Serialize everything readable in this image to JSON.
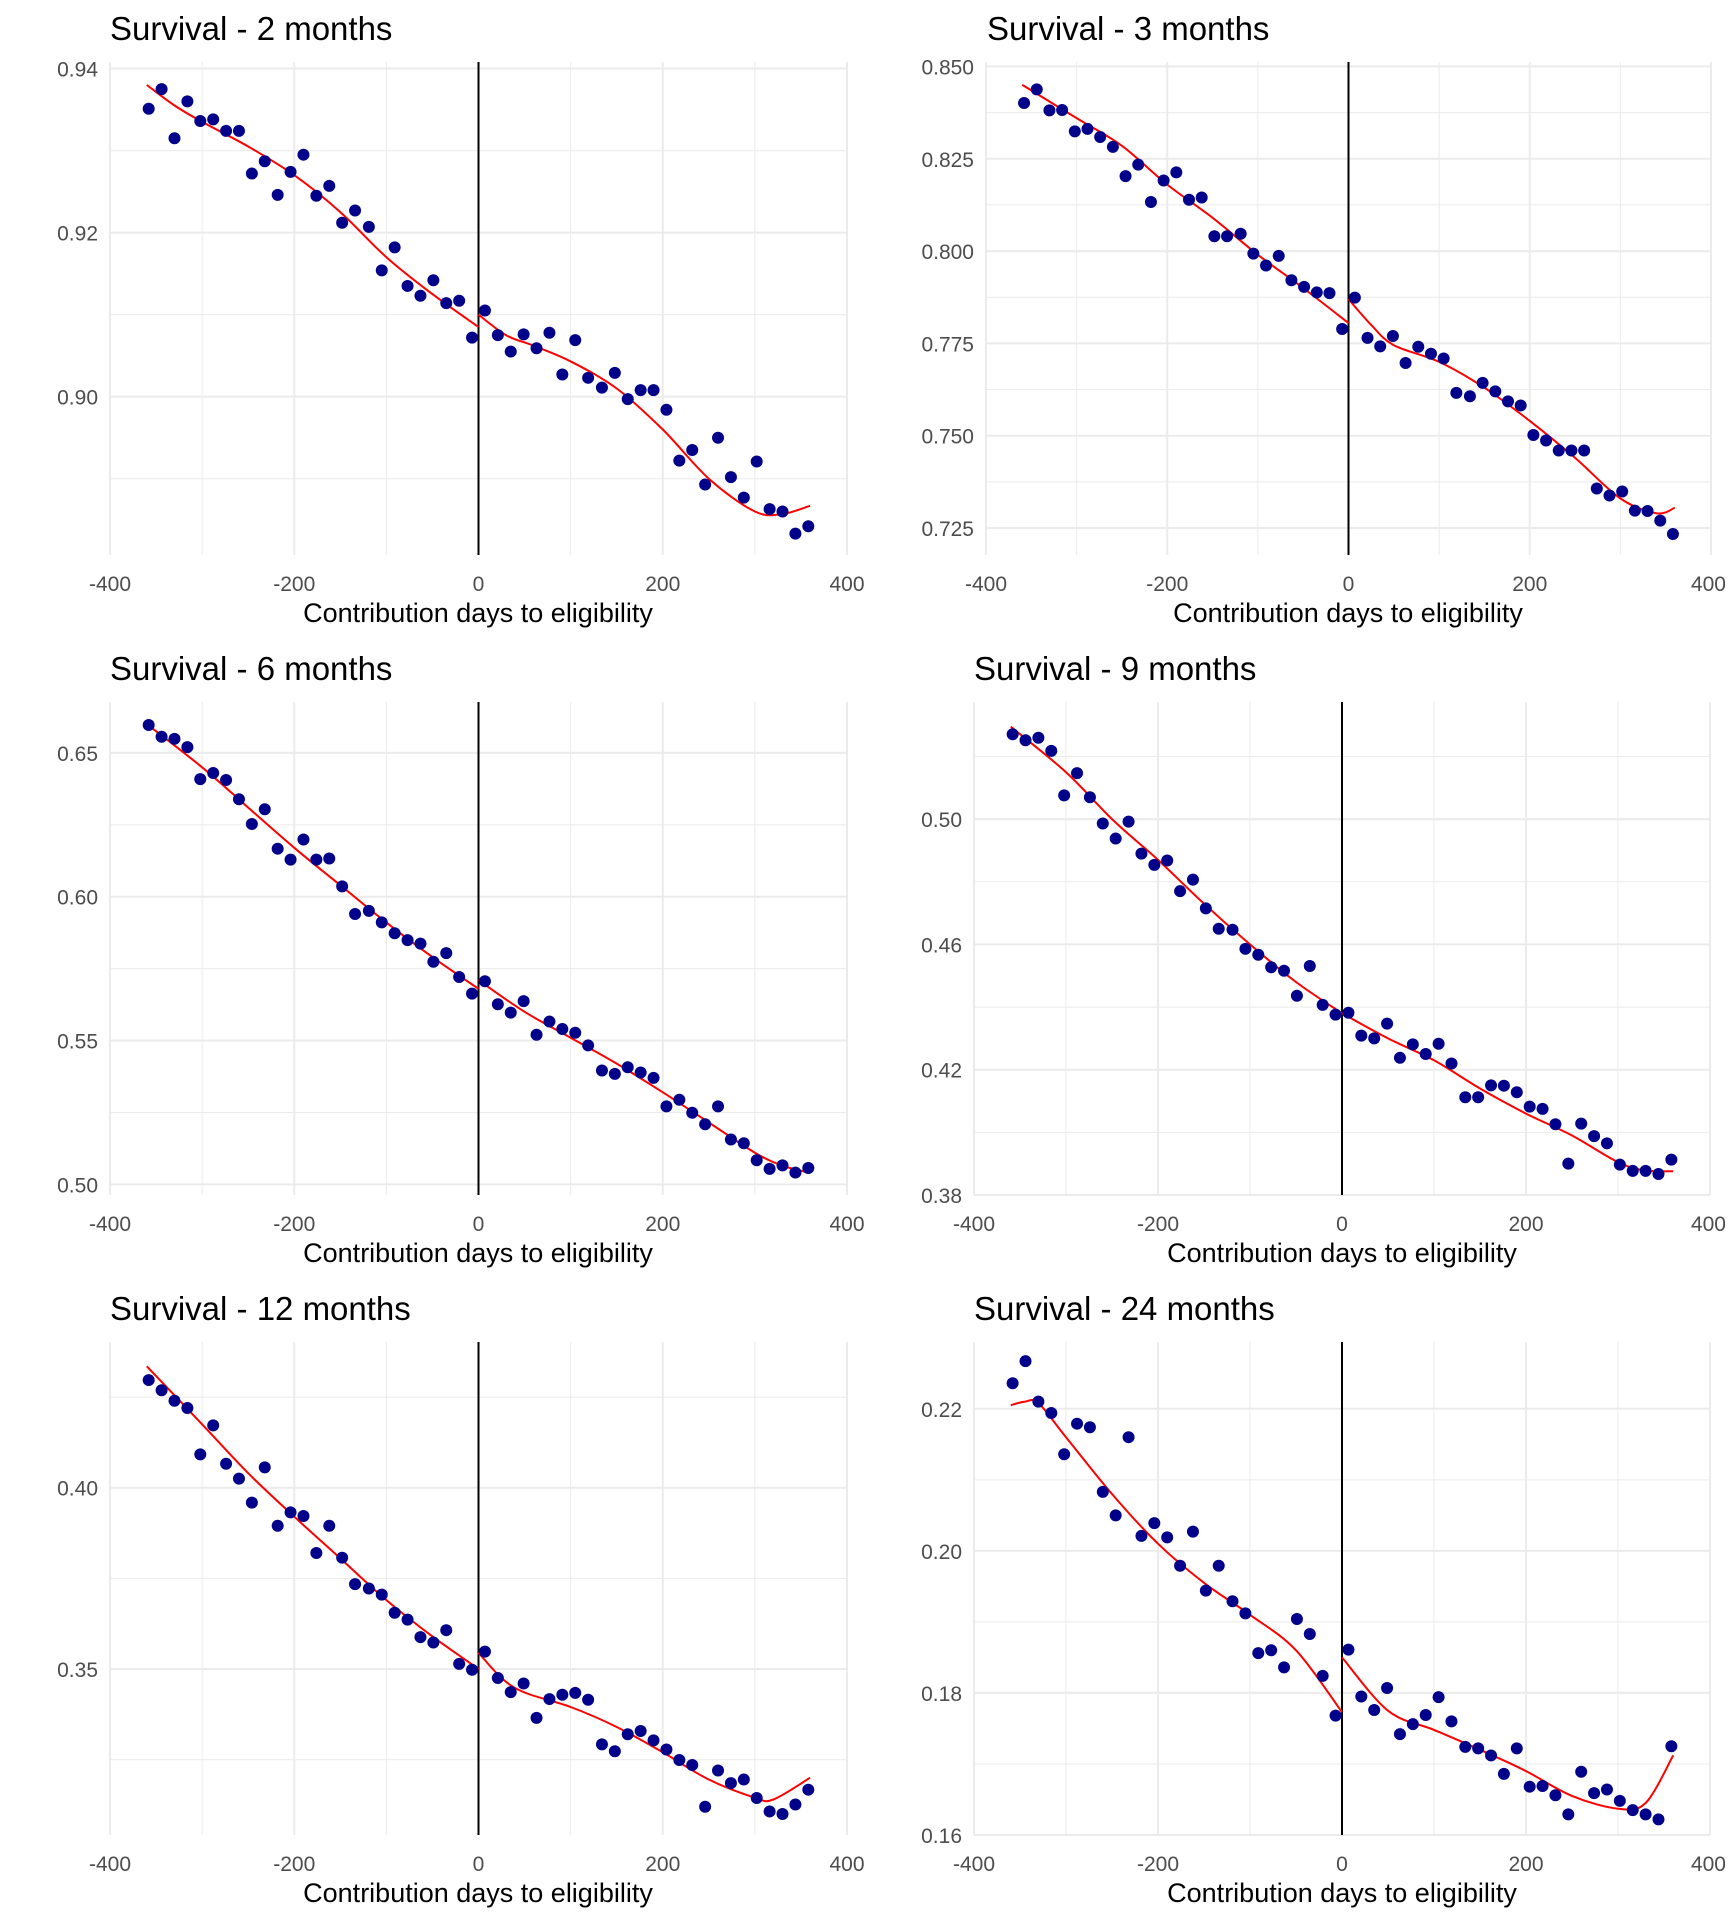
{
  "colors": {
    "points": "#00008B",
    "fit": "#FF0000",
    "cutoff": "#000000",
    "grid": "#EBEBEB"
  },
  "chart_data": [
    {
      "type": "scatter",
      "title": "Survival - 2 months",
      "xlabel": "Contribution days to eligibility",
      "ylabel": "",
      "xlim": [
        -400,
        400
      ],
      "ylim": [
        0.8807,
        0.9408
      ],
      "x_ticks": [
        -400,
        -200,
        0,
        200,
        400
      ],
      "x_tick_labels": [
        "-400",
        "-200",
        "0",
        "200",
        "400"
      ],
      "y_ticks": [
        0.9,
        0.92,
        0.94
      ],
      "y_tick_labels": [
        "0.90",
        "0.92",
        "0.94"
      ],
      "y_minor": [
        0.89,
        0.91,
        0.93
      ],
      "cutoff": 0,
      "grid": true,
      "points": {
        "left": [
          0.9351,
          0.9375,
          0.9315,
          0.936,
          0.9336,
          0.9338,
          0.9324,
          0.9324,
          0.9272,
          0.9287,
          0.9246,
          0.9274,
          0.9295,
          0.9245,
          0.9257,
          0.9212,
          0.9227,
          0.9207,
          0.9154,
          0.9182,
          0.9135,
          0.9123,
          0.9142,
          0.9114,
          0.9117,
          0.9072
        ],
        "right": [
          0.9105,
          0.9075,
          0.9055,
          0.9076,
          0.9059,
          0.9078,
          0.9027,
          0.9069,
          0.9023,
          0.9011,
          0.9029,
          0.8997,
          0.9008,
          0.9008,
          0.8984,
          0.8922,
          0.8935,
          0.8893,
          0.895,
          0.8902,
          0.8877,
          0.8921,
          0.8863,
          0.886,
          0.8833,
          0.8842
        ]
      },
      "fit": {
        "left": [
          [
            -360,
            0.938
          ],
          [
            -330,
            0.9355
          ],
          [
            -300,
            0.9335
          ],
          [
            -250,
            0.9305
          ],
          [
            -200,
            0.927
          ],
          [
            -150,
            0.9225
          ],
          [
            -100,
            0.917
          ],
          [
            -50,
            0.9125
          ],
          [
            0,
            0.9085
          ]
        ],
        "right": [
          [
            0,
            0.91
          ],
          [
            30,
            0.9075
          ],
          [
            60,
            0.9062
          ],
          [
            100,
            0.9043
          ],
          [
            150,
            0.901
          ],
          [
            200,
            0.896
          ],
          [
            250,
            0.89
          ],
          [
            300,
            0.886
          ],
          [
            330,
            0.8857
          ],
          [
            360,
            0.8867
          ]
        ]
      }
    },
    {
      "type": "scatter",
      "title": "Survival - 3 months",
      "xlabel": "Contribution days to eligibility",
      "ylabel": "",
      "xlim": [
        -400,
        400
      ],
      "ylim": [
        0.7177,
        0.8512
      ],
      "x_ticks": [
        -400,
        -200,
        0,
        200,
        400
      ],
      "x_tick_labels": [
        "-400",
        "-200",
        "0",
        "200",
        "400"
      ],
      "y_ticks": [
        0.725,
        0.75,
        0.775,
        0.8,
        0.825,
        0.85
      ],
      "y_tick_labels": [
        "0.725",
        "0.750",
        "0.775",
        "0.800",
        "0.825",
        "0.850"
      ],
      "y_minor": [
        0.7375,
        0.7625,
        0.7875,
        0.8125,
        0.8375
      ],
      "cutoff": 0,
      "grid": true,
      "points": {
        "left": [
          0.8401,
          0.8438,
          0.8381,
          0.8382,
          0.8324,
          0.8331,
          0.8309,
          0.8282,
          0.8203,
          0.8234,
          0.8133,
          0.8191,
          0.8213,
          0.8139,
          0.8145,
          0.804,
          0.804,
          0.8047,
          0.7993,
          0.7961,
          0.7987,
          0.7921,
          0.7903,
          0.7888,
          0.7886,
          0.7789
        ],
        "right": [
          0.7874,
          0.7765,
          0.7742,
          0.777,
          0.7697,
          0.7741,
          0.7722,
          0.7709,
          0.7616,
          0.7607,
          0.7643,
          0.762,
          0.7593,
          0.7582,
          0.7502,
          0.7487,
          0.746,
          0.746,
          0.746,
          0.7357,
          0.7338,
          0.7349,
          0.7297,
          0.7296,
          0.727,
          0.7234
        ]
      },
      "fit": {
        "left": [
          [
            -360,
            0.845
          ],
          [
            -300,
            0.836
          ],
          [
            -250,
            0.8285
          ],
          [
            -200,
            0.818
          ],
          [
            -150,
            0.809
          ],
          [
            -100,
            0.799
          ],
          [
            -50,
            0.79
          ],
          [
            0,
            0.7805
          ]
        ],
        "right": [
          [
            0,
            0.787
          ],
          [
            25,
            0.78
          ],
          [
            50,
            0.7745
          ],
          [
            100,
            0.77
          ],
          [
            150,
            0.763
          ],
          [
            200,
            0.754
          ],
          [
            250,
            0.744
          ],
          [
            300,
            0.733
          ],
          [
            340,
            0.729
          ],
          [
            360,
            0.7305
          ]
        ]
      }
    },
    {
      "type": "scatter",
      "title": "Survival - 6 months",
      "xlabel": "Contribution days to eligibility",
      "ylabel": "",
      "xlim": [
        -400,
        400
      ],
      "ylim": [
        0.4963,
        0.6677
      ],
      "x_ticks": [
        -400,
        -200,
        0,
        200,
        400
      ],
      "x_tick_labels": [
        "-400",
        "-200",
        "0",
        "200",
        "400"
      ],
      "y_ticks": [
        0.5,
        0.55,
        0.6,
        0.65
      ],
      "y_tick_labels": [
        "0.50",
        "0.55",
        "0.60",
        "0.65"
      ],
      "y_minor": [
        0.525,
        0.575,
        0.625
      ],
      "cutoff": 0,
      "grid": true,
      "points": {
        "left": [
          0.6597,
          0.6556,
          0.6549,
          0.652,
          0.6409,
          0.643,
          0.6406,
          0.6339,
          0.6253,
          0.6304,
          0.6167,
          0.6129,
          0.6199,
          0.6129,
          0.6133,
          0.6036,
          0.594,
          0.5951,
          0.5911,
          0.5873,
          0.5849,
          0.5837,
          0.5774,
          0.5804,
          0.5721,
          0.5663
        ],
        "right": [
          0.5706,
          0.5626,
          0.5597,
          0.5637,
          0.552,
          0.5566,
          0.554,
          0.5527,
          0.5483,
          0.5396,
          0.5384,
          0.5407,
          0.5389,
          0.537,
          0.5271,
          0.5294,
          0.5249,
          0.5209,
          0.5271,
          0.5156,
          0.5143,
          0.5084,
          0.5054,
          0.5066,
          0.5041,
          0.5057
        ]
      },
      "fit": {
        "left": [
          [
            -360,
            0.66
          ],
          [
            -300,
            0.645
          ],
          [
            -250,
            0.631
          ],
          [
            -200,
            0.617
          ],
          [
            -150,
            0.604
          ],
          [
            -100,
            0.591
          ],
          [
            -50,
            0.579
          ],
          [
            0,
            0.568
          ]
        ],
        "right": [
          [
            0,
            0.571
          ],
          [
            50,
            0.56
          ],
          [
            100,
            0.551
          ],
          [
            150,
            0.542
          ],
          [
            200,
            0.532
          ],
          [
            250,
            0.5215
          ],
          [
            300,
            0.511
          ],
          [
            330,
            0.5065
          ],
          [
            360,
            0.504
          ]
        ]
      }
    },
    {
      "type": "scatter",
      "title": "Survival - 9 months",
      "xlabel": "Contribution days to eligibility",
      "ylabel": "",
      "xlim": [
        -400,
        400
      ],
      "ylim": [
        0.38,
        0.5374
      ],
      "x_ticks": [
        -400,
        -200,
        0,
        200,
        400
      ],
      "x_tick_labels": [
        "-400",
        "-200",
        "0",
        "200",
        "400"
      ],
      "y_ticks": [
        0.38,
        0.42,
        0.46,
        0.5
      ],
      "y_tick_labels": [
        "0.38",
        "0.42",
        "0.46",
        "0.50"
      ],
      "y_minor": [
        0.4,
        0.44,
        0.48,
        0.52
      ],
      "cutoff": 0,
      "grid": true,
      "points": {
        "left": [
          0.5271,
          0.5252,
          0.526,
          0.5218,
          0.5076,
          0.5147,
          0.507,
          0.4986,
          0.4938,
          0.4992,
          0.489,
          0.4854,
          0.4868,
          0.477,
          0.4807,
          0.4715,
          0.465,
          0.4647,
          0.4586,
          0.4567,
          0.4527,
          0.4516,
          0.4436,
          0.4531,
          0.4407,
          0.4376
        ],
        "right": [
          0.4382,
          0.4309,
          0.43,
          0.4347,
          0.4238,
          0.4281,
          0.425,
          0.4283,
          0.422,
          0.4112,
          0.4112,
          0.415,
          0.4149,
          0.4128,
          0.4082,
          0.4075,
          0.4026,
          0.39,
          0.4028,
          0.3988,
          0.3965,
          0.3897,
          0.3877,
          0.3877,
          0.3867,
          0.3913
        ]
      },
      "fit": {
        "left": [
          [
            -360,
            0.5295
          ],
          [
            -300,
            0.515
          ],
          [
            -250,
            0.5
          ],
          [
            -200,
            0.487
          ],
          [
            -150,
            0.473
          ],
          [
            -100,
            0.46
          ],
          [
            -50,
            0.448
          ],
          [
            0,
            0.438
          ]
        ],
        "right": [
          [
            0,
            0.438
          ],
          [
            50,
            0.43
          ],
          [
            100,
            0.423
          ],
          [
            150,
            0.414
          ],
          [
            200,
            0.406
          ],
          [
            250,
            0.399
          ],
          [
            300,
            0.3905
          ],
          [
            330,
            0.3878
          ],
          [
            360,
            0.3876
          ]
        ]
      }
    },
    {
      "type": "scatter",
      "title": "Survival - 12 months",
      "xlabel": "Contribution days to eligibility",
      "ylabel": "",
      "xlim": [
        -400,
        400
      ],
      "ylim": [
        0.3042,
        0.4402
      ],
      "x_ticks": [
        -400,
        -200,
        0,
        200,
        400
      ],
      "x_tick_labels": [
        "-400",
        "-200",
        "0",
        "200",
        "400"
      ],
      "y_ticks": [
        0.35,
        0.4
      ],
      "y_tick_labels": [
        "0.35",
        "0.40"
      ],
      "y_minor": [
        0.325,
        0.375,
        0.425
      ],
      "cutoff": 0,
      "grid": true,
      "points": {
        "left": [
          0.4297,
          0.4269,
          0.424,
          0.422,
          0.4092,
          0.4172,
          0.4066,
          0.4025,
          0.3959,
          0.4056,
          0.3895,
          0.3932,
          0.3922,
          0.382,
          0.3895,
          0.3807,
          0.3734,
          0.3722,
          0.3705,
          0.3655,
          0.3636,
          0.3588,
          0.3573,
          0.3607,
          0.3514,
          0.3498
        ],
        "right": [
          0.3548,
          0.3475,
          0.3436,
          0.346,
          0.3365,
          0.3417,
          0.3429,
          0.3434,
          0.3415,
          0.3292,
          0.3273,
          0.332,
          0.3329,
          0.3303,
          0.3278,
          0.3249,
          0.3235,
          0.312,
          0.322,
          0.3185,
          0.3195,
          0.3144,
          0.3107,
          0.31,
          0.3126,
          0.3167
        ]
      },
      "fit": {
        "left": [
          [
            -360,
            0.4335
          ],
          [
            -300,
            0.4175
          ],
          [
            -250,
            0.404
          ],
          [
            -200,
            0.392
          ],
          [
            -150,
            0.3805
          ],
          [
            -100,
            0.369
          ],
          [
            -50,
            0.359
          ],
          [
            0,
            0.35
          ]
        ],
        "right": [
          [
            0,
            0.3545
          ],
          [
            25,
            0.3475
          ],
          [
            50,
            0.3435
          ],
          [
            100,
            0.3395
          ],
          [
            150,
            0.334
          ],
          [
            200,
            0.327
          ],
          [
            250,
            0.3195
          ],
          [
            300,
            0.3145
          ],
          [
            320,
            0.314
          ],
          [
            360,
            0.32
          ]
        ]
      }
    },
    {
      "type": "scatter",
      "title": "Survival - 24 months",
      "xlabel": "Contribution days to eligibility",
      "ylabel": "",
      "xlim": [
        -400,
        400
      ],
      "ylim": [
        0.16,
        0.2294
      ],
      "x_ticks": [
        -400,
        -200,
        0,
        200,
        400
      ],
      "x_tick_labels": [
        "-400",
        "-200",
        "0",
        "200",
        "400"
      ],
      "y_ticks": [
        0.16,
        0.18,
        0.2,
        0.22
      ],
      "y_tick_labels": [
        "0.16",
        "0.18",
        "0.20",
        "0.22"
      ],
      "y_minor": [
        0.17,
        0.19,
        0.21
      ],
      "cutoff": 0,
      "grid": true,
      "points": {
        "left": [
          0.2236,
          0.2267,
          0.221,
          0.2194,
          0.2136,
          0.2179,
          0.2174,
          0.2083,
          0.205,
          0.216,
          0.2021,
          0.2039,
          0.2019,
          0.1979,
          0.2027,
          0.1944,
          0.1979,
          0.1929,
          0.1912,
          0.1856,
          0.186,
          0.1836,
          0.1904,
          0.1883,
          0.1824,
          0.1768
        ],
        "right": [
          0.1861,
          0.1795,
          0.1776,
          0.1807,
          0.1742,
          0.1756,
          0.1769,
          0.1794,
          0.176,
          0.1724,
          0.1722,
          0.1712,
          0.1686,
          0.1722,
          0.1668,
          0.1669,
          0.1656,
          0.1629,
          0.1689,
          0.1659,
          0.1664,
          0.1648,
          0.1635,
          0.1629,
          0.1622,
          0.1725
        ]
      },
      "fit": {
        "left": [
          [
            -360,
            0.2205
          ],
          [
            -345,
            0.221
          ],
          [
            -330,
            0.2208
          ],
          [
            -300,
            0.216
          ],
          [
            -250,
            0.208
          ],
          [
            -200,
            0.201
          ],
          [
            -150,
            0.1955
          ],
          [
            -100,
            0.191
          ],
          [
            -50,
            0.186
          ],
          [
            0,
            0.1773
          ]
        ],
        "right": [
          [
            0,
            0.185
          ],
          [
            50,
            0.1775
          ],
          [
            100,
            0.1748
          ],
          [
            150,
            0.172
          ],
          [
            200,
            0.169
          ],
          [
            250,
            0.1655
          ],
          [
            300,
            0.1637
          ],
          [
            330,
            0.1645
          ],
          [
            360,
            0.1712
          ]
        ]
      }
    }
  ],
  "bin_days": [
    7,
    21,
    35,
    49,
    63,
    77,
    91,
    105,
    119,
    134,
    148,
    162,
    176,
    190,
    204,
    218,
    232,
    246,
    260,
    274,
    288,
    302,
    316,
    330,
    344,
    358
  ]
}
